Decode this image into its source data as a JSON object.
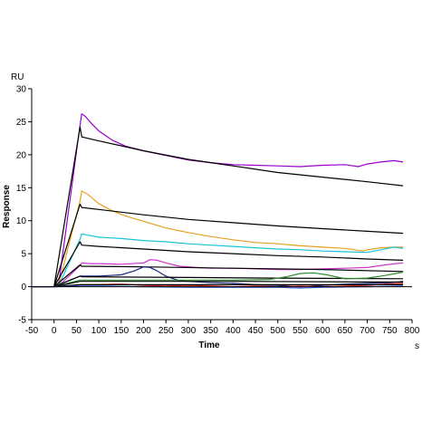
{
  "chart_data": {
    "type": "line",
    "title": "",
    "xlabel": "Time",
    "ylabel": "Response",
    "x_unit": "s",
    "y_unit": "RU",
    "xlim": [
      -50,
      800
    ],
    "ylim": [
      -5,
      30
    ],
    "x_ticks": [
      -50,
      0,
      50,
      100,
      150,
      200,
      250,
      300,
      350,
      400,
      450,
      500,
      550,
      600,
      650,
      700,
      750,
      800
    ],
    "y_ticks": [
      -5,
      0,
      5,
      10,
      15,
      20,
      25,
      30
    ],
    "grid": false,
    "legend": "none",
    "series": [
      {
        "color": "#9900cc",
        "width": 1.2,
        "points": [
          [
            -50,
            0
          ],
          [
            0,
            0
          ],
          [
            10,
            0.2
          ],
          [
            58,
            24.5
          ],
          [
            62,
            26.2
          ],
          [
            70,
            25.8
          ],
          [
            80,
            25.0
          ],
          [
            100,
            23.6
          ],
          [
            130,
            22.2
          ],
          [
            160,
            21.3
          ],
          [
            200,
            20.6
          ],
          [
            250,
            19.9
          ],
          [
            300,
            19.2
          ],
          [
            350,
            18.8
          ],
          [
            400,
            18.5
          ],
          [
            450,
            18.4
          ],
          [
            500,
            18.3
          ],
          [
            550,
            18.2
          ],
          [
            600,
            18.4
          ],
          [
            650,
            18.5
          ],
          [
            680,
            18.2
          ],
          [
            700,
            18.6
          ],
          [
            730,
            18.9
          ],
          [
            760,
            19.1
          ],
          [
            780,
            18.9
          ]
        ]
      },
      {
        "color": "#000000",
        "width": 1.2,
        "points": [
          [
            0,
            0
          ],
          [
            58,
            24.2
          ],
          [
            62,
            22.7
          ],
          [
            100,
            22.1
          ],
          [
            200,
            20.6
          ],
          [
            300,
            19.3
          ],
          [
            400,
            18.3
          ],
          [
            500,
            17.3
          ],
          [
            600,
            16.6
          ],
          [
            700,
            15.9
          ],
          [
            780,
            15.3
          ]
        ]
      },
      {
        "color": "#e6a020",
        "width": 1.2,
        "points": [
          [
            -50,
            0
          ],
          [
            0,
            0
          ],
          [
            10,
            0.2
          ],
          [
            58,
            13.0
          ],
          [
            62,
            14.5
          ],
          [
            75,
            14.0
          ],
          [
            100,
            12.6
          ],
          [
            130,
            11.5
          ],
          [
            160,
            10.7
          ],
          [
            200,
            9.9
          ],
          [
            250,
            8.9
          ],
          [
            300,
            8.2
          ],
          [
            350,
            7.6
          ],
          [
            400,
            7.1
          ],
          [
            450,
            6.7
          ],
          [
            500,
            6.5
          ],
          [
            550,
            6.2
          ],
          [
            600,
            6.0
          ],
          [
            650,
            5.8
          ],
          [
            690,
            5.4
          ],
          [
            700,
            5.6
          ],
          [
            730,
            5.9
          ],
          [
            760,
            6.0
          ],
          [
            780,
            6.0
          ]
        ]
      },
      {
        "color": "#000000",
        "width": 1.2,
        "points": [
          [
            0,
            0
          ],
          [
            58,
            12.5
          ],
          [
            62,
            12.0
          ],
          [
            100,
            11.7
          ],
          [
            200,
            10.9
          ],
          [
            300,
            10.2
          ],
          [
            400,
            9.7
          ],
          [
            500,
            9.2
          ],
          [
            600,
            8.8
          ],
          [
            700,
            8.4
          ],
          [
            780,
            8.1
          ]
        ]
      },
      {
        "color": "#19c3d6",
        "width": 1.2,
        "points": [
          [
            -50,
            0
          ],
          [
            0,
            0
          ],
          [
            10,
            0.1
          ],
          [
            58,
            7.2
          ],
          [
            62,
            8.0
          ],
          [
            75,
            7.8
          ],
          [
            100,
            7.5
          ],
          [
            150,
            7.3
          ],
          [
            200,
            7.0
          ],
          [
            250,
            6.8
          ],
          [
            300,
            6.5
          ],
          [
            350,
            6.3
          ],
          [
            400,
            6.1
          ],
          [
            450,
            5.9
          ],
          [
            500,
            5.7
          ],
          [
            550,
            5.6
          ],
          [
            600,
            5.4
          ],
          [
            650,
            5.3
          ],
          [
            700,
            5.2
          ],
          [
            730,
            5.6
          ],
          [
            760,
            6.0
          ],
          [
            780,
            5.8
          ]
        ]
      },
      {
        "color": "#000000",
        "width": 1.2,
        "points": [
          [
            0,
            0
          ],
          [
            58,
            6.8
          ],
          [
            62,
            6.3
          ],
          [
            100,
            6.1
          ],
          [
            200,
            5.7
          ],
          [
            300,
            5.3
          ],
          [
            400,
            5.0
          ],
          [
            500,
            4.7
          ],
          [
            600,
            4.5
          ],
          [
            700,
            4.2
          ],
          [
            780,
            4.0
          ]
        ]
      },
      {
        "color": "#cc33cc",
        "width": 1.2,
        "points": [
          [
            -50,
            0
          ],
          [
            0,
            0
          ],
          [
            10,
            0.1
          ],
          [
            58,
            3.2
          ],
          [
            62,
            3.6
          ],
          [
            80,
            3.5
          ],
          [
            100,
            3.5
          ],
          [
            150,
            3.4
          ],
          [
            200,
            3.6
          ],
          [
            215,
            4.1
          ],
          [
            230,
            4.0
          ],
          [
            250,
            3.6
          ],
          [
            280,
            3.1
          ],
          [
            320,
            2.9
          ],
          [
            350,
            2.8
          ],
          [
            400,
            2.8
          ],
          [
            450,
            2.7
          ],
          [
            500,
            2.6
          ],
          [
            550,
            2.6
          ],
          [
            600,
            2.7
          ],
          [
            650,
            2.8
          ],
          [
            700,
            2.9
          ],
          [
            740,
            3.3
          ],
          [
            780,
            3.6
          ]
        ]
      },
      {
        "color": "#000000",
        "width": 1.2,
        "points": [
          [
            0,
            0
          ],
          [
            58,
            3.3
          ],
          [
            62,
            3.1
          ],
          [
            200,
            3.0
          ],
          [
            400,
            2.8
          ],
          [
            600,
            2.6
          ],
          [
            780,
            2.3
          ]
        ]
      },
      {
        "color": "#1a2a7a",
        "width": 1.2,
        "points": [
          [
            -50,
            0
          ],
          [
            0,
            0
          ],
          [
            58,
            1.6
          ],
          [
            100,
            1.6
          ],
          [
            150,
            1.8
          ],
          [
            180,
            2.4
          ],
          [
            200,
            3.0
          ],
          [
            215,
            2.9
          ],
          [
            230,
            2.4
          ],
          [
            250,
            1.6
          ],
          [
            280,
            0.9
          ],
          [
            300,
            0.8
          ],
          [
            350,
            0.6
          ],
          [
            400,
            0.5
          ],
          [
            450,
            0.3
          ],
          [
            500,
            0.2
          ],
          [
            550,
            0.0
          ],
          [
            600,
            0.2
          ],
          [
            650,
            0.4
          ],
          [
            700,
            0.5
          ],
          [
            750,
            0.6
          ],
          [
            780,
            0.8
          ]
        ]
      },
      {
        "color": "#000000",
        "width": 1.2,
        "points": [
          [
            0,
            0
          ],
          [
            58,
            1.6
          ],
          [
            62,
            1.5
          ],
          [
            300,
            1.4
          ],
          [
            500,
            1.3
          ],
          [
            780,
            1.2
          ]
        ]
      },
      {
        "color": "#2e8b2e",
        "width": 1.2,
        "points": [
          [
            -50,
            0
          ],
          [
            0,
            0
          ],
          [
            58,
            1.0
          ],
          [
            100,
            1.0
          ],
          [
            200,
            1.0
          ],
          [
            300,
            1.0
          ],
          [
            400,
            1.0
          ],
          [
            480,
            1.1
          ],
          [
            520,
            1.5
          ],
          [
            550,
            2.0
          ],
          [
            580,
            2.1
          ],
          [
            610,
            1.8
          ],
          [
            650,
            1.2
          ],
          [
            700,
            1.3
          ],
          [
            740,
            1.7
          ],
          [
            780,
            2.2
          ]
        ]
      },
      {
        "color": "#000000",
        "width": 1.2,
        "points": [
          [
            0,
            0
          ],
          [
            58,
            0.8
          ],
          [
            62,
            0.8
          ],
          [
            400,
            0.8
          ],
          [
            780,
            0.7
          ]
        ]
      },
      {
        "color": "#d62020",
        "width": 1.2,
        "points": [
          [
            -50,
            0
          ],
          [
            0,
            0
          ],
          [
            58,
            0.3
          ],
          [
            100,
            0.3
          ],
          [
            150,
            0.4
          ],
          [
            200,
            0.2
          ],
          [
            250,
            0.1
          ],
          [
            300,
            0.2
          ],
          [
            350,
            0.1
          ],
          [
            400,
            0.0
          ],
          [
            450,
            0.1
          ],
          [
            500,
            0.0
          ],
          [
            550,
            0.1
          ],
          [
            600,
            0.0
          ],
          [
            650,
            0.1
          ],
          [
            700,
            0.2
          ],
          [
            740,
            0.4
          ],
          [
            780,
            0.5
          ]
        ]
      },
      {
        "color": "#000000",
        "width": 1.2,
        "points": [
          [
            0,
            0
          ],
          [
            58,
            0.3
          ],
          [
            62,
            0.3
          ],
          [
            780,
            0.3
          ]
        ]
      },
      {
        "color": "#3355cc",
        "width": 1.2,
        "points": [
          [
            -50,
            0
          ],
          [
            0,
            0
          ],
          [
            58,
            0.1
          ],
          [
            100,
            0.1
          ],
          [
            200,
            0.0
          ],
          [
            300,
            -0.1
          ],
          [
            400,
            -0.1
          ],
          [
            500,
            -0.1
          ],
          [
            550,
            -0.2
          ],
          [
            600,
            -0.1
          ],
          [
            700,
            0.0
          ],
          [
            780,
            0.1
          ]
        ]
      }
    ]
  }
}
